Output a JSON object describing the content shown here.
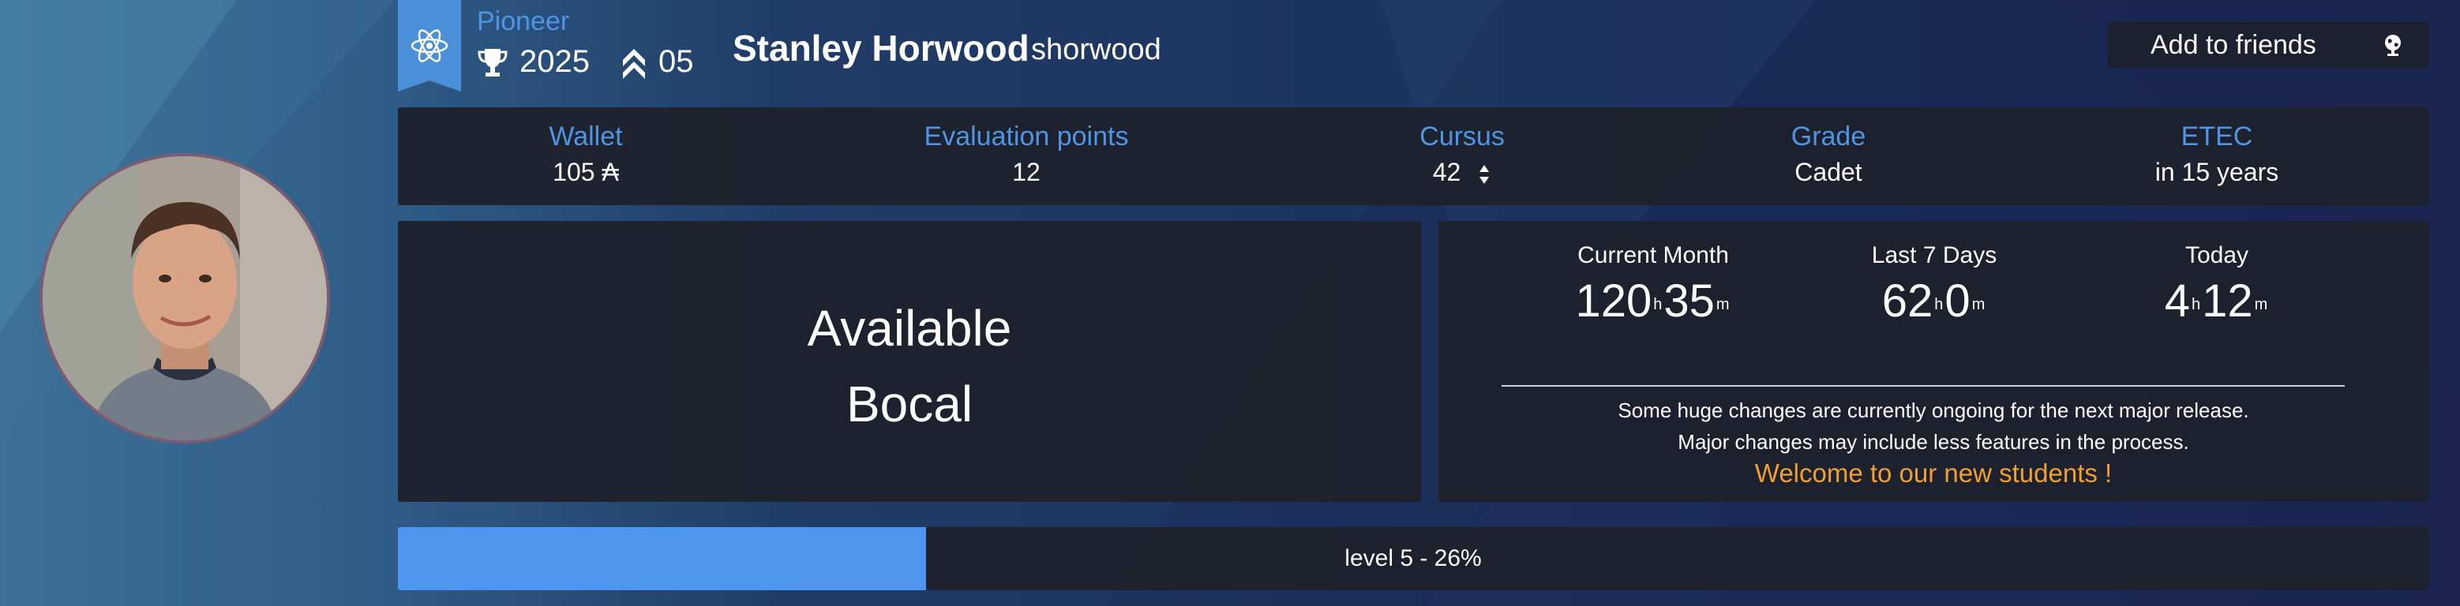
{
  "header": {
    "title_badge": "Pioneer",
    "trophy_count": "2025",
    "rank_level": "05",
    "full_name": "Stanley Horwood",
    "login": "shorwood",
    "add_friends_label": "Add to friends"
  },
  "stats": [
    {
      "label": "Wallet",
      "value": "105 ₳"
    },
    {
      "label": "Evaluation points",
      "value": "12"
    },
    {
      "label": "Cursus",
      "value": "42"
    },
    {
      "label": "Grade",
      "value": "Cadet"
    },
    {
      "label": "ETEC",
      "value": "in 15 years"
    }
  ],
  "availability": {
    "line1": "Available",
    "line2": "Bocal"
  },
  "logtime": [
    {
      "label": "Current Month",
      "hours": "120",
      "minutes": "35"
    },
    {
      "label": "Last 7 Days",
      "hours": "62",
      "minutes": "0"
    },
    {
      "label": "Today",
      "hours": "4",
      "minutes": "12"
    }
  ],
  "units": {
    "hours": "h",
    "minutes": "m"
  },
  "announcement": {
    "line1": "Some huge changes are currently ongoing for the next major release.",
    "line2": "Major changes may include less features in the process.",
    "welcome": "Welcome to our new students !"
  },
  "level": {
    "label": "level 5 - 26%",
    "progress": 0.26
  },
  "colors": {
    "accent": "#4e95e6",
    "panel": "#1e212b",
    "welcome": "#f0a030",
    "level_fill": "#4e95f0"
  },
  "icons": [
    "atom-icon",
    "trophy-icon",
    "rank-chevron-icon",
    "globe-icon",
    "sort-arrows-icon"
  ]
}
